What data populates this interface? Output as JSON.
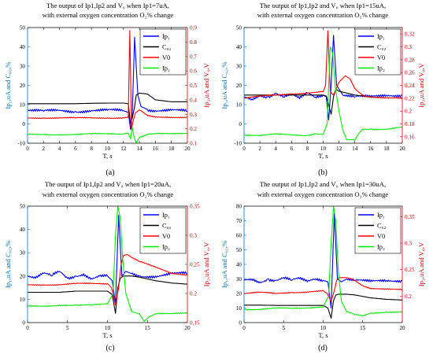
{
  "figure": {
    "colors": {
      "Ip1": "#0000ff",
      "CO2": "#000000",
      "V0": "#ff0000",
      "Ip2": "#00ee00",
      "left_axis": "#0072bd",
      "right_axis": "#d60000"
    }
  },
  "chart_data": [
    {
      "type": "line",
      "panel_label": "(a)",
      "title_line1": "The output of Ip1,Ip2 and V₀ when Ip1=7uA,",
      "title_line2": "with external oxygen concentration O₂% change",
      "xlabel": "T, s",
      "ylabel_left": "Ip₁,uA and C₀₂,%",
      "ylabel_right": "Ip₂,uA and V₀,V",
      "xlim": [
        0,
        20
      ],
      "ylim_left": [
        -10,
        50
      ],
      "ylim_right": [
        0.1,
        0.9
      ],
      "xticks": [
        "0",
        "2",
        "4",
        "6",
        "8",
        "10",
        "12",
        "14",
        "16",
        "18",
        "20"
      ],
      "yticks_left": [
        "-10",
        "0",
        "10",
        "20",
        "30",
        "40",
        "50"
      ],
      "yticks_right": [
        "0.1",
        "0.2",
        "0.3",
        "0.4",
        "0.5",
        "0.6",
        "0.7",
        "0.8",
        "0.9"
      ],
      "legend": [
        "Ip₁",
        "C₀₂",
        "V0",
        "Ip₂"
      ],
      "legend_position": "top-right",
      "series": [
        {
          "name": "Ip₁",
          "axis": "left",
          "x": [
            0,
            2,
            4,
            6,
            8,
            10,
            12,
            12.6,
            12.9,
            13.1,
            13.4,
            13.8,
            14.2,
            15,
            16,
            18,
            20
          ],
          "y": [
            7,
            6.5,
            7,
            6.5,
            7,
            7,
            6.8,
            6,
            -3,
            5,
            45,
            15,
            9,
            7.5,
            7,
            7,
            6.5
          ]
        },
        {
          "name": "C₀₂",
          "axis": "left",
          "x": [
            0,
            2,
            4,
            6,
            8,
            10,
            12,
            12.6,
            12.9,
            13.1,
            13.4,
            13.6,
            14,
            15,
            16,
            18,
            20
          ],
          "y": [
            10.5,
            10.5,
            10.5,
            10.5,
            10.7,
            10.8,
            10.8,
            10.5,
            0,
            3,
            9,
            15,
            16,
            15.5,
            12.5,
            11.5,
            11.5
          ]
        },
        {
          "name": "V0",
          "axis": "right",
          "x": [
            0,
            2,
            4,
            6,
            8,
            10,
            12,
            12.6,
            12.8,
            13.0,
            13.2,
            13.5,
            14,
            15,
            16,
            18,
            20
          ],
          "y": [
            0.275,
            0.275,
            0.275,
            0.275,
            0.275,
            0.275,
            0.275,
            0.28,
            0.88,
            0.2,
            0.25,
            0.31,
            0.33,
            0.29,
            0.28,
            0.28,
            0.28
          ]
        },
        {
          "name": "Ip₂",
          "axis": "right",
          "x": [
            0,
            2,
            4,
            6,
            8,
            10,
            12,
            12.6,
            12.9,
            13.1,
            13.3,
            13.6,
            14,
            15,
            16,
            18,
            20
          ],
          "y": [
            0.16,
            0.16,
            0.16,
            0.16,
            0.165,
            0.165,
            0.165,
            0.17,
            0.13,
            0.21,
            0.15,
            0.1,
            0.14,
            0.16,
            0.165,
            0.165,
            0.17
          ]
        }
      ]
    },
    {
      "type": "line",
      "panel_label": "(b)",
      "title_line1": "The output of Ip1,Ip2 and V₀ when Ip1=15uA,",
      "title_line2": "with external oxygen concentration O₂% change",
      "xlabel": "T, s",
      "ylabel_left": "Ip₁,uA and C₀₂,%",
      "ylabel_right": "Ip₂,uA and V₀,V",
      "xlim": [
        0,
        20
      ],
      "ylim_left": [
        -10,
        50
      ],
      "ylim_right": [
        0.15,
        0.33
      ],
      "xticks": [
        "0",
        "2",
        "4",
        "6",
        "8",
        "10",
        "12",
        "14",
        "16",
        "18",
        "20"
      ],
      "yticks_left": [
        "-10",
        "0",
        "10",
        "20",
        "30",
        "40",
        "50"
      ],
      "yticks_right": [
        "0.16",
        "0.18",
        "0.2",
        "0.22",
        "0.24",
        "0.26",
        "0.28",
        "0.3",
        "0.32"
      ],
      "legend": [
        "Ip₁",
        "C₀₂",
        "V0",
        "Ip₂"
      ],
      "legend_position": "top-right",
      "series": [
        {
          "name": "Ip₁",
          "axis": "left",
          "x": [
            0,
            1,
            2,
            3,
            4,
            5,
            6,
            7,
            8,
            9,
            10,
            10.4,
            10.7,
            11.0,
            11.3,
            11.7,
            12.5,
            14,
            16,
            18,
            20
          ],
          "y": [
            14,
            13,
            15,
            14,
            16,
            14,
            15,
            13,
            16,
            14,
            15,
            14,
            2,
            20,
            46,
            20,
            15,
            14,
            14,
            15,
            15
          ]
        },
        {
          "name": "C₀₂",
          "axis": "left",
          "x": [
            0,
            2,
            4,
            6,
            8,
            10,
            10.4,
            10.7,
            11.0,
            11.3,
            11.6,
            12,
            13,
            14,
            16,
            18,
            20
          ],
          "y": [
            15,
            15,
            15,
            15,
            15,
            15,
            14.5,
            10,
            5,
            14,
            18,
            17,
            16,
            15,
            14,
            13.5,
            13.5
          ]
        },
        {
          "name": "V0",
          "axis": "right",
          "x": [
            0,
            2,
            4,
            6,
            8,
            10,
            10.3,
            10.6,
            10.9,
            11.3,
            12,
            12.8,
            13.4,
            14,
            15,
            16,
            18,
            20
          ],
          "y": [
            0.22,
            0.223,
            0.225,
            0.227,
            0.228,
            0.23,
            0.24,
            0.325,
            0.23,
            0.225,
            0.245,
            0.255,
            0.25,
            0.235,
            0.225,
            0.222,
            0.22,
            0.22
          ]
        },
        {
          "name": "Ip₂",
          "axis": "right",
          "x": [
            0,
            2,
            4,
            6,
            8,
            9,
            10,
            10.5,
            10.9,
            11.2,
            11.5,
            12,
            12.5,
            13,
            14,
            14.5,
            15,
            16,
            18,
            20
          ],
          "y": [
            0.163,
            0.162,
            0.164,
            0.163,
            0.162,
            0.165,
            0.164,
            0.18,
            0.3,
            0.29,
            0.24,
            0.2,
            0.17,
            0.155,
            0.155,
            0.165,
            0.172,
            0.172,
            0.172,
            0.175
          ]
        }
      ]
    },
    {
      "type": "line",
      "panel_label": "(c)",
      "title_line1": "The output of Ip1,Ip2 and V₀ when Ip1=20uA,",
      "title_line2": "with external oxygen concentration O₂% change",
      "xlabel": "T, s",
      "ylabel_left": "Ip₁,uA and C₀₂,%",
      "ylabel_right": "Ip₂,uA and V₀,V",
      "xlim": [
        0,
        20
      ],
      "ylim_left": [
        0,
        50
      ],
      "ylim_right": [
        0.15,
        0.35
      ],
      "xticks": [
        "0",
        "5",
        "10",
        "15",
        "20"
      ],
      "yticks_left": [
        "0",
        "10",
        "20",
        "30",
        "40",
        "50"
      ],
      "yticks_right": [
        "0.15",
        "0.2",
        "0.25",
        "0.3",
        "0.35"
      ],
      "legend": [
        "Ip₁",
        "C₀₂",
        "V0",
        "Ip₂"
      ],
      "legend_position": "top-right",
      "series": [
        {
          "name": "Ip₁",
          "axis": "left",
          "x": [
            0,
            1,
            2,
            3,
            4,
            5,
            6,
            7,
            8,
            9,
            10,
            10.6,
            11.0,
            11.4,
            11.8,
            12.3,
            13,
            14,
            16,
            18,
            20
          ],
          "y": [
            20,
            19,
            21,
            20,
            22,
            19,
            20,
            21,
            19,
            20,
            20,
            18,
            8,
            46,
            20,
            22,
            21,
            20,
            20,
            21,
            21
          ]
        },
        {
          "name": "C₀₂",
          "axis": "left",
          "x": [
            0,
            2,
            4,
            6,
            8,
            10,
            10.6,
            11.0,
            11.3,
            11.6,
            12,
            13,
            14,
            16,
            18,
            20
          ],
          "y": [
            13,
            13,
            13,
            13.5,
            13.5,
            13.5,
            12,
            4,
            15,
            19,
            20,
            20,
            19.5,
            18,
            17,
            16.5
          ]
        },
        {
          "name": "V0",
          "axis": "right",
          "x": [
            0,
            2,
            4,
            6,
            8,
            10,
            10.5,
            11.0,
            11.4,
            11.7,
            12,
            12.5,
            13,
            14,
            15,
            16,
            18,
            20
          ],
          "y": [
            0.215,
            0.215,
            0.215,
            0.217,
            0.217,
            0.217,
            0.21,
            0.18,
            0.21,
            0.25,
            0.265,
            0.267,
            0.262,
            0.255,
            0.25,
            0.245,
            0.235,
            0.232
          ]
        },
        {
          "name": "Ip₂",
          "axis": "right",
          "x": [
            0,
            2,
            4,
            6,
            8,
            10,
            10.7,
            11.0,
            11.3,
            11.6,
            11.9,
            12.3,
            13,
            14,
            14.6,
            15.2,
            16,
            18,
            20
          ],
          "y": [
            0.178,
            0.178,
            0.18,
            0.18,
            0.18,
            0.182,
            0.2,
            0.3,
            0.35,
            0.33,
            0.26,
            0.2,
            0.17,
            0.165,
            0.152,
            0.16,
            0.165,
            0.165,
            0.167
          ]
        }
      ]
    },
    {
      "type": "line",
      "panel_label": "(d)",
      "title_line1": "The output of Ip1,Ip2 and V₀ when Ip1=30uA,",
      "title_line2": "with external oxygen concentration O₂% change",
      "xlabel": "T, s",
      "ylabel_left": "Ip₁,uA and C₀₂,%",
      "ylabel_right": "Ip₂,uA and V₀,V",
      "xlim": [
        0,
        20
      ],
      "ylim_left": [
        0,
        80
      ],
      "ylim_right": [
        0.15,
        0.37
      ],
      "xticks": [
        "0",
        "5",
        "10",
        "15",
        "20"
      ],
      "yticks_left": [
        "0",
        "10",
        "20",
        "30",
        "40",
        "50",
        "60",
        "70",
        "80"
      ],
      "yticks_right": [
        "0.2",
        "0.25",
        "0.3",
        "0.35"
      ],
      "legend": [
        "Ip₁",
        "C₀₂",
        "V0",
        "Ip₂"
      ],
      "legend_position": "top-right",
      "series": [
        {
          "name": "Ip₁",
          "axis": "left",
          "x": [
            0,
            1,
            2,
            3,
            4,
            5,
            6,
            7,
            8,
            9,
            10,
            10.6,
            11.0,
            11.4,
            11.8,
            12.3,
            13,
            14,
            16,
            18,
            20
          ],
          "y": [
            29,
            30,
            28,
            30,
            29,
            31,
            29,
            30,
            28,
            30,
            29,
            28,
            10,
            75,
            30,
            28,
            30,
            29,
            28,
            29,
            29
          ]
        },
        {
          "name": "C₀₂",
          "axis": "left",
          "x": [
            0,
            2,
            4,
            6,
            8,
            10,
            10.6,
            11.0,
            11.3,
            11.6,
            12,
            13,
            14,
            16,
            18,
            20
          ],
          "y": [
            12,
            12,
            11.8,
            11.8,
            11.8,
            11.8,
            10,
            3,
            15,
            19,
            19.5,
            19.5,
            19,
            17,
            16,
            15.5
          ]
        },
        {
          "name": "V0",
          "axis": "right",
          "x": [
            0,
            2,
            4,
            6,
            8,
            10,
            10.5,
            11.0,
            11.4,
            11.7,
            12,
            12.5,
            13,
            14,
            15,
            16,
            18,
            20
          ],
          "y": [
            0.205,
            0.207,
            0.205,
            0.207,
            0.208,
            0.21,
            0.205,
            0.19,
            0.21,
            0.23,
            0.235,
            0.235,
            0.235,
            0.23,
            0.22,
            0.215,
            0.213,
            0.212
          ]
        },
        {
          "name": "Ip₂",
          "axis": "right",
          "x": [
            0,
            2,
            4,
            6,
            8,
            10,
            10.7,
            11.0,
            11.3,
            11.6,
            11.9,
            12.3,
            13,
            14,
            15,
            16,
            18,
            20
          ],
          "y": [
            0.175,
            0.175,
            0.177,
            0.177,
            0.178,
            0.18,
            0.2,
            0.3,
            0.37,
            0.34,
            0.25,
            0.19,
            0.17,
            0.165,
            0.163,
            0.168,
            0.17,
            0.17
          ]
        }
      ]
    }
  ]
}
